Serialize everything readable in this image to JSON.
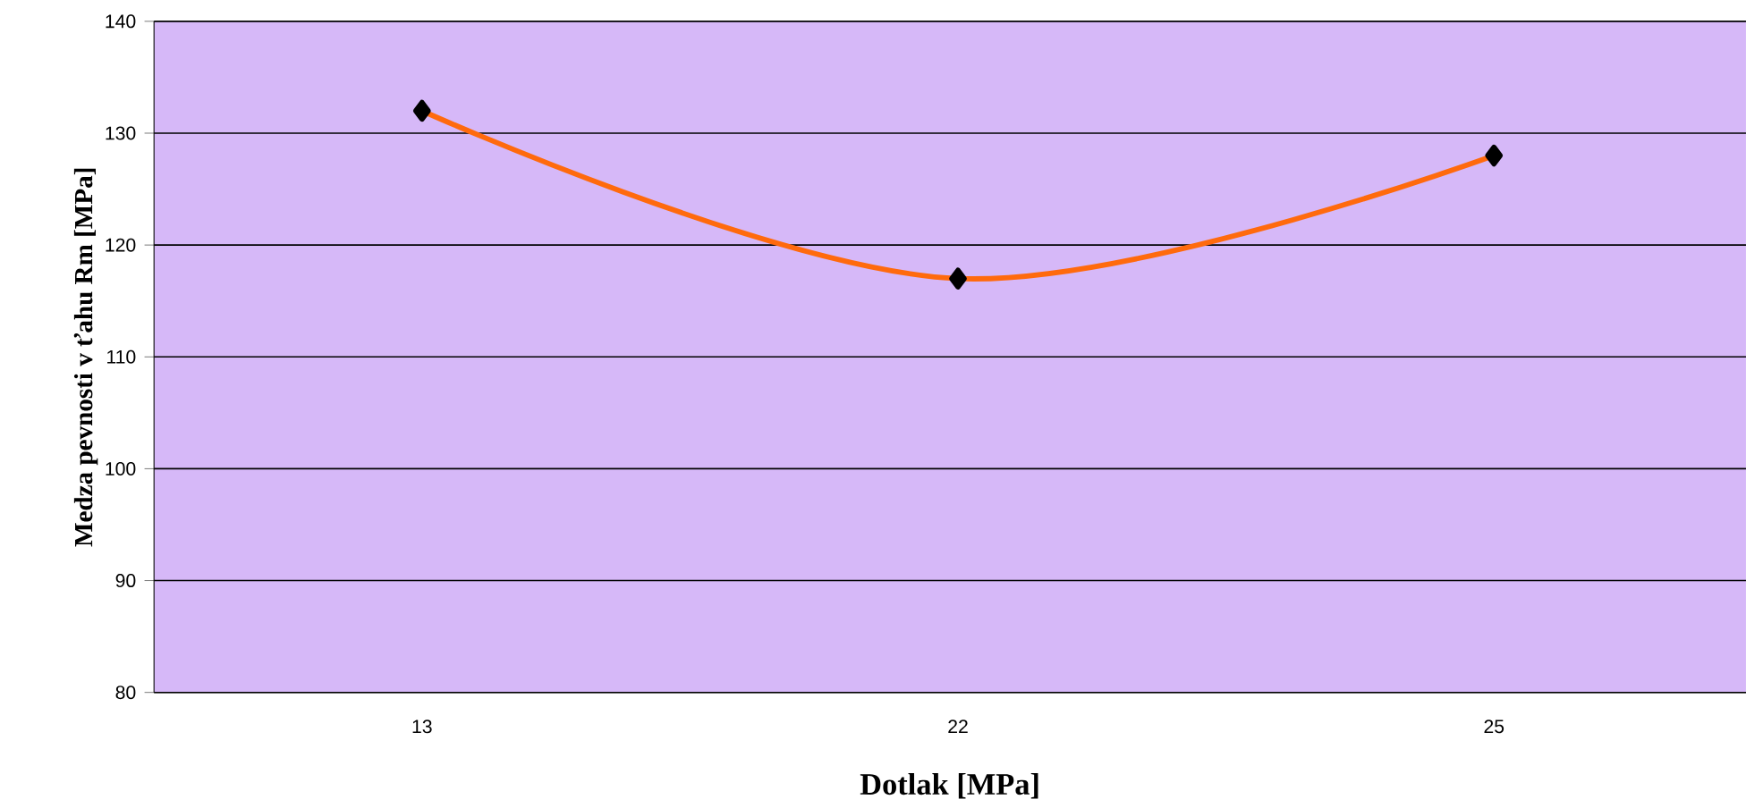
{
  "chart_data": {
    "type": "line",
    "xlabel": "Dotlak [MPa]",
    "ylabel": "Medza pevnosti v ťahu Rm [MPa]",
    "categories": [
      "13",
      "22",
      "25"
    ],
    "series": [
      {
        "color": "#ff6a0d",
        "values": [
          132,
          117,
          128
        ]
      }
    ],
    "ylim": [
      80,
      140
    ],
    "yticks": [
      80,
      90,
      100,
      110,
      120,
      130,
      140
    ],
    "grid": "y",
    "marker": "diamond",
    "line_style": "solid"
  }
}
